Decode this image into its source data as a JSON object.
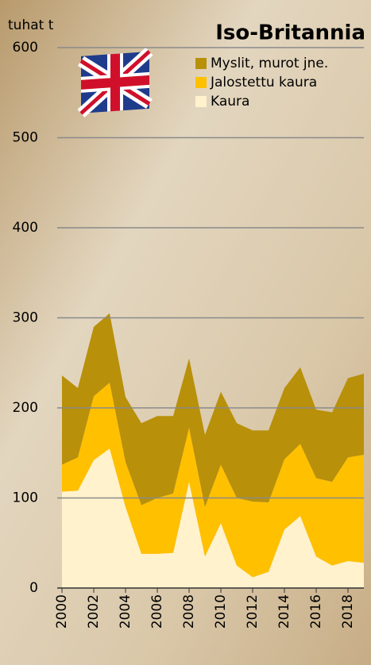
{
  "chart_data": {
    "type": "stacked-area",
    "title": "Iso-Britannia",
    "y_label": "tuhat t",
    "x": [
      2000,
      2001,
      2002,
      2003,
      2004,
      2005,
      2006,
      2007,
      2008,
      2009,
      2010,
      2011,
      2012,
      2013,
      2014,
      2015,
      2016,
      2017,
      2018,
      2019
    ],
    "xlim": [
      2000,
      2019
    ],
    "xticks": [
      2000,
      2002,
      2004,
      2006,
      2008,
      2010,
      2012,
      2014,
      2016,
      2018
    ],
    "ylim": [
      0,
      600
    ],
    "yticks": [
      0,
      100,
      200,
      300,
      400,
      500,
      600
    ],
    "grid": true,
    "legend": "top-right",
    "series": [
      {
        "name": "Kaura",
        "color": "#fff2cc",
        "values": [
          107,
          108,
          142,
          155,
          90,
          38,
          38,
          39,
          118,
          35,
          72,
          25,
          12,
          18,
          65,
          80,
          35,
          25,
          30,
          28
        ]
      },
      {
        "name": "Jalostettu kaura",
        "color": "#ffc000",
        "values": [
          30,
          37,
          71,
          73,
          50,
          54,
          62,
          66,
          60,
          55,
          65,
          75,
          84,
          77,
          78,
          80,
          87,
          93,
          115,
          120
        ]
      },
      {
        "name": "Myslit, murot jne.",
        "color": "#b8900a",
        "values": [
          99,
          77,
          77,
          77,
          72,
          91,
          91,
          86,
          77,
          80,
          81,
          83,
          79,
          80,
          79,
          85,
          76,
          77,
          88,
          90
        ]
      }
    ]
  }
}
